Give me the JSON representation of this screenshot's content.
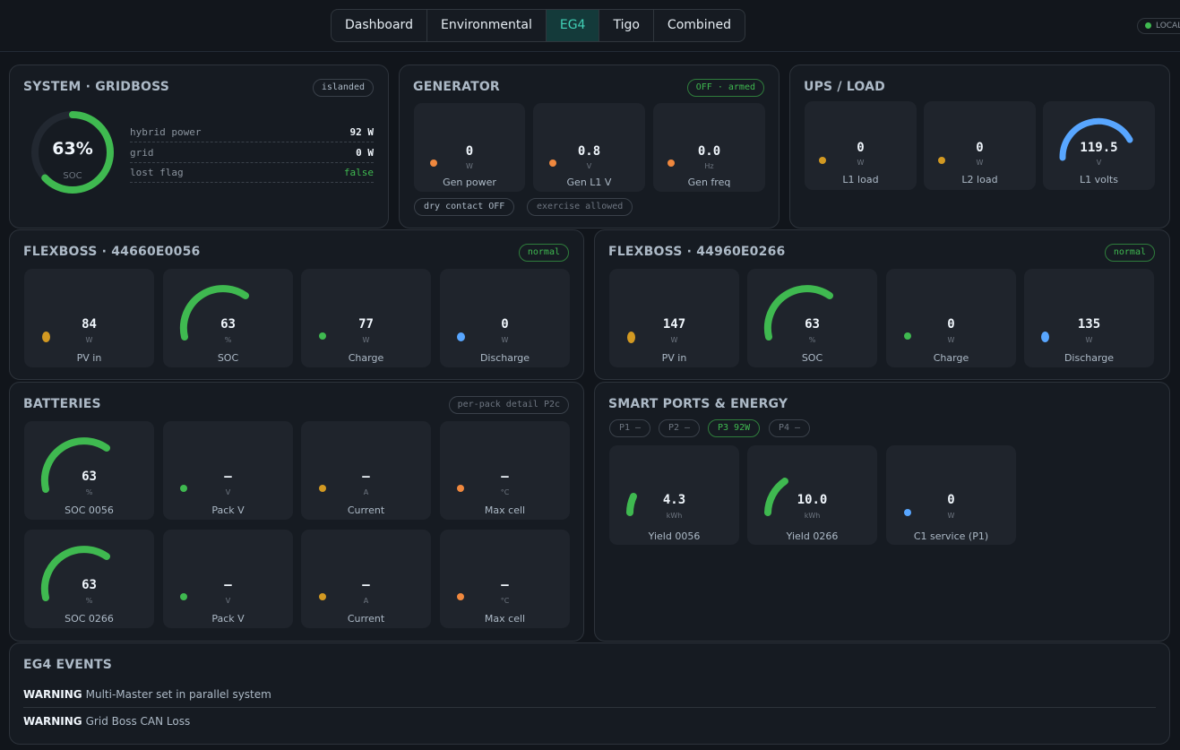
{
  "nav": {
    "tabs": [
      {
        "label": "Dashboard"
      },
      {
        "label": "Environmental"
      },
      {
        "label": "EG4"
      },
      {
        "label": "Tigo"
      },
      {
        "label": "Combined"
      }
    ],
    "active_tab": "EG4",
    "status_pill": "LOCAL"
  },
  "system": {
    "title": "SYSTEM · GRIDBOSS",
    "badge": "islanded",
    "soc_value": "63%",
    "soc_label": "SOC",
    "soc_fraction": 0.63,
    "rows": [
      {
        "key": "hybrid power",
        "value": "92 W"
      },
      {
        "key": "grid",
        "value": "0 W"
      },
      {
        "key": "lost flag",
        "value": "false"
      }
    ]
  },
  "generator": {
    "title": "GENERATOR",
    "badge": "OFF · armed",
    "tiles": [
      {
        "value": "0",
        "unit": "W",
        "label": "Gen power"
      },
      {
        "value": "0.8",
        "unit": "V",
        "label": "Gen L1 V"
      },
      {
        "value": "0.0",
        "unit": "Hz",
        "label": "Gen freq"
      }
    ],
    "chips": [
      "dry contact OFF",
      "exercise allowed"
    ]
  },
  "ups": {
    "title": "UPS / LOAD",
    "tiles": [
      {
        "value": "0",
        "unit": "W",
        "label": "L1 load"
      },
      {
        "value": "0",
        "unit": "W",
        "label": "L2 load"
      },
      {
        "value": "119.5",
        "unit": "V",
        "label": "L1 volts"
      }
    ]
  },
  "flexboss1": {
    "title": "FLEXBOSS · 44660E0056",
    "badge": "normal",
    "tiles": [
      {
        "value": "84",
        "unit": "W",
        "label": "PV in"
      },
      {
        "value": "63",
        "unit": "%",
        "label": "SOC"
      },
      {
        "value": "77",
        "unit": "W",
        "label": "Charge"
      },
      {
        "value": "0",
        "unit": "W",
        "label": "Discharge"
      }
    ]
  },
  "flexboss2": {
    "title": "FLEXBOSS · 44960E0266",
    "badge": "normal",
    "tiles": [
      {
        "value": "147",
        "unit": "W",
        "label": "PV in"
      },
      {
        "value": "63",
        "unit": "%",
        "label": "SOC"
      },
      {
        "value": "0",
        "unit": "W",
        "label": "Charge"
      },
      {
        "value": "135",
        "unit": "W",
        "label": "Discharge"
      }
    ]
  },
  "batteries": {
    "title": "BATTERIES",
    "badge": "per-pack detail P2c",
    "tiles": [
      {
        "value": "63",
        "unit": "%",
        "label": "SOC 0056"
      },
      {
        "value": "—",
        "unit": "V",
        "label": "Pack V"
      },
      {
        "value": "—",
        "unit": "A",
        "label": "Current"
      },
      {
        "value": "—",
        "unit": "°C",
        "label": "Max cell"
      },
      {
        "value": "63",
        "unit": "%",
        "label": "SOC 0266"
      },
      {
        "value": "—",
        "unit": "V",
        "label": "Pack V"
      },
      {
        "value": "—",
        "unit": "A",
        "label": "Current"
      },
      {
        "value": "—",
        "unit": "°C",
        "label": "Max cell"
      }
    ]
  },
  "smartports": {
    "title": "SMART PORTS & ENERGY",
    "ports": [
      "P1 —",
      "P2 —",
      "P3 92W",
      "P4 —"
    ],
    "tiles": [
      {
        "value": "4.3",
        "unit": "kWh",
        "label": "Yield 0056"
      },
      {
        "value": "10.0",
        "unit": "kWh",
        "label": "Yield 0266"
      },
      {
        "value": "0",
        "unit": "W",
        "label": "C1 service (P1)"
      }
    ]
  },
  "events": {
    "title": "EG4 EVENTS",
    "items": [
      {
        "level": "WARNING",
        "text": "Multi-Master set in parallel system"
      },
      {
        "level": "WARNING",
        "text": "Grid Boss CAN Loss"
      }
    ]
  },
  "colors": {
    "green": "#3fb950",
    "orange": "#f0883e",
    "amber": "#d29922",
    "blue": "#58a6ff",
    "accent": "#41d1b6"
  }
}
